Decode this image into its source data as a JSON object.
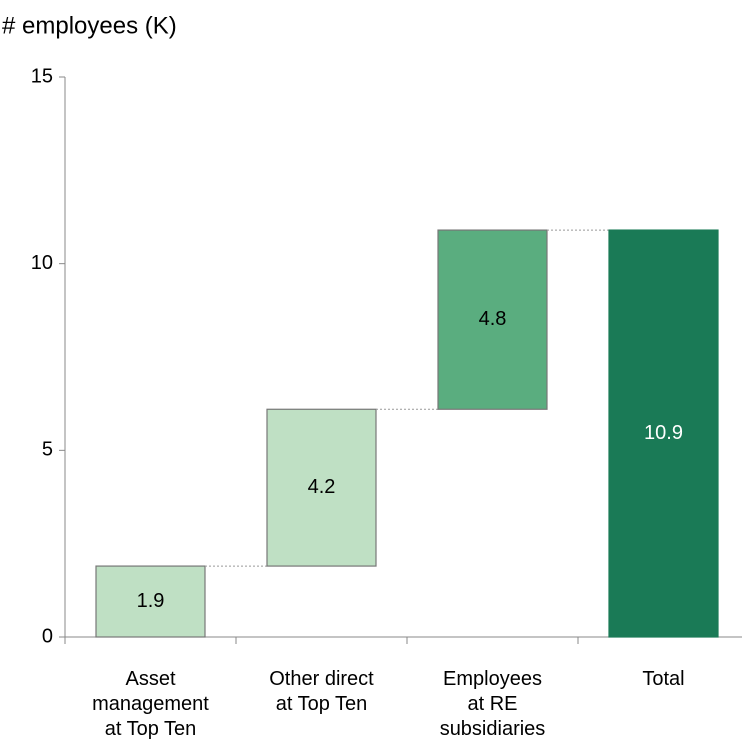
{
  "chart_data": {
    "type": "waterfall",
    "ylabel": "# employees (K)",
    "categories": [
      "Asset\nmanagement\nat Top Ten",
      "Other direct\nat Top Ten",
      "Employees\nat RE\nsubsidiaries",
      "Total"
    ],
    "values": [
      1.9,
      4.2,
      4.8,
      10.9
    ],
    "is_total": [
      false,
      false,
      false,
      true
    ],
    "colors": [
      "#bfe0c4",
      "#bfe0c4",
      "#5aad7f",
      "#1a7a56"
    ],
    "ylim": [
      0,
      15
    ],
    "yticks": [
      0,
      5,
      10,
      15
    ]
  }
}
